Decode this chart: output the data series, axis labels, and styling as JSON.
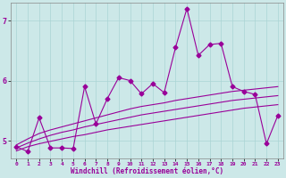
{
  "xlabel": "Windchill (Refroidissement éolien,°C)",
  "bg_color": "#cce8e8",
  "line_color": "#990099",
  "x_values": [
    0,
    1,
    2,
    3,
    4,
    5,
    6,
    7,
    8,
    9,
    10,
    11,
    12,
    13,
    14,
    15,
    16,
    17,
    18,
    19,
    20,
    21,
    22,
    23
  ],
  "y_main": [
    4.9,
    4.82,
    5.38,
    4.88,
    4.88,
    4.87,
    5.9,
    5.28,
    5.7,
    6.05,
    6.0,
    5.78,
    5.95,
    5.8,
    6.55,
    7.2,
    6.42,
    6.6,
    6.62,
    5.9,
    5.82,
    5.77,
    4.95,
    5.42
  ],
  "y_upper": [
    4.93,
    5.03,
    5.12,
    5.18,
    5.23,
    5.28,
    5.33,
    5.38,
    5.43,
    5.48,
    5.53,
    5.57,
    5.6,
    5.63,
    5.67,
    5.7,
    5.73,
    5.76,
    5.79,
    5.82,
    5.84,
    5.86,
    5.88,
    5.9
  ],
  "y_mid": [
    4.88,
    4.96,
    5.03,
    5.09,
    5.14,
    5.18,
    5.23,
    5.27,
    5.31,
    5.35,
    5.39,
    5.43,
    5.46,
    5.49,
    5.52,
    5.55,
    5.58,
    5.61,
    5.64,
    5.67,
    5.69,
    5.71,
    5.73,
    5.75
  ],
  "y_lower": [
    4.83,
    4.9,
    4.95,
    4.99,
    5.03,
    5.07,
    5.1,
    5.14,
    5.18,
    5.21,
    5.24,
    5.27,
    5.3,
    5.33,
    5.36,
    5.39,
    5.42,
    5.45,
    5.48,
    5.51,
    5.54,
    5.56,
    5.58,
    5.6
  ],
  "ylim": [
    4.7,
    7.3
  ],
  "xlim": [
    -0.5,
    23.5
  ],
  "yticks": [
    5,
    6,
    7
  ],
  "xticks": [
    0,
    1,
    2,
    3,
    4,
    5,
    6,
    7,
    8,
    9,
    10,
    11,
    12,
    13,
    14,
    15,
    16,
    17,
    18,
    19,
    20,
    21,
    22,
    23
  ],
  "grid_color": "#aad4d4",
  "marker": "D",
  "marker_size": 2.5,
  "line_width": 0.8
}
